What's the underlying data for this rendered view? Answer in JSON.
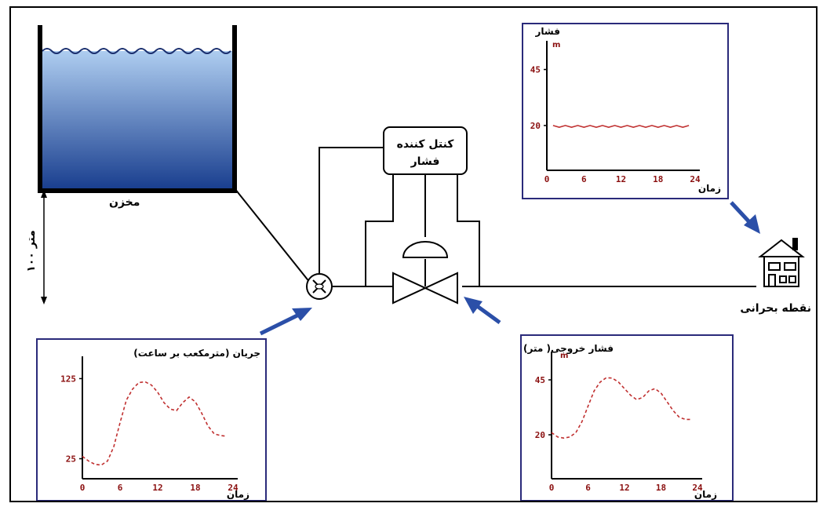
{
  "diagram": {
    "tank_label": "مخزن",
    "height_label": "۱۰۰ متر",
    "controller_line1": "کنتل کننده",
    "controller_line2": "فشار",
    "critical_point_label": "نقطه بحرانی"
  },
  "colors": {
    "water_top": "#aecdf0",
    "water_bottom": "#1a3f8f",
    "arrow": "#2b4fa8",
    "chart_border": "#2a2a7a",
    "tick": "#8b1010",
    "curve": "#c03030"
  },
  "chart_data": [
    {
      "id": "top_right",
      "type": "line",
      "title": "فشار",
      "unit": "m",
      "xlabel": "زمان",
      "x_ticks": [
        "0",
        "6",
        "12",
        "18",
        "24"
      ],
      "y_ticks": [
        "45",
        "20"
      ],
      "xlim": [
        0,
        24
      ],
      "ylim": [
        0,
        55
      ],
      "series": [
        {
          "x": [
            1,
            2,
            3,
            4,
            5,
            6,
            7,
            8,
            9,
            10,
            11,
            12,
            13,
            14,
            15,
            16,
            17,
            18,
            19,
            20,
            21,
            22,
            23
          ],
          "values": [
            20,
            19.2,
            20,
            19.2,
            20,
            19.2,
            20,
            19.2,
            20,
            19.2,
            20,
            19.2,
            20,
            19.2,
            20,
            19.2,
            20,
            19.2,
            20,
            19.2,
            20,
            19.2,
            20
          ]
        }
      ]
    },
    {
      "id": "bottom_left",
      "type": "line",
      "title": "جریان (مترمکعب بر ساعت)",
      "xlabel": "زمان",
      "x_ticks": [
        "0",
        "6",
        "12",
        "18",
        "24"
      ],
      "y_ticks": [
        "125",
        "25"
      ],
      "xlim": [
        0,
        24
      ],
      "ylim": [
        0,
        145
      ],
      "series": [
        {
          "x": [
            0,
            1,
            2,
            3,
            4,
            5,
            6,
            7,
            8,
            9,
            10,
            11,
            12,
            13,
            14,
            15,
            16,
            17,
            18,
            19,
            20,
            21,
            22,
            23
          ],
          "values": [
            28,
            22,
            18,
            17,
            22,
            40,
            70,
            98,
            112,
            120,
            121,
            117,
            108,
            95,
            87,
            85,
            95,
            102,
            96,
            82,
            66,
            56,
            54,
            53
          ]
        }
      ]
    },
    {
      "id": "bottom_right",
      "type": "line",
      "title": "فشار خروجی( متر)",
      "unit": "m",
      "xlabel": "زمان",
      "x_ticks": [
        "0",
        "6",
        "12",
        "18",
        "24"
      ],
      "y_ticks": [
        "45",
        "20"
      ],
      "xlim": [
        0,
        24
      ],
      "ylim": [
        0,
        55
      ],
      "series": [
        {
          "x": [
            0,
            1,
            2,
            3,
            4,
            5,
            6,
            7,
            8,
            9,
            10,
            11,
            12,
            13,
            14,
            15,
            16,
            17,
            18,
            19,
            20,
            21,
            22,
            23
          ],
          "values": [
            21,
            19,
            18.5,
            19,
            21,
            26,
            33,
            40,
            44,
            46,
            45.8,
            44,
            41,
            38,
            36,
            37,
            40,
            41,
            39,
            35,
            31,
            28,
            27,
            27
          ]
        }
      ]
    }
  ]
}
